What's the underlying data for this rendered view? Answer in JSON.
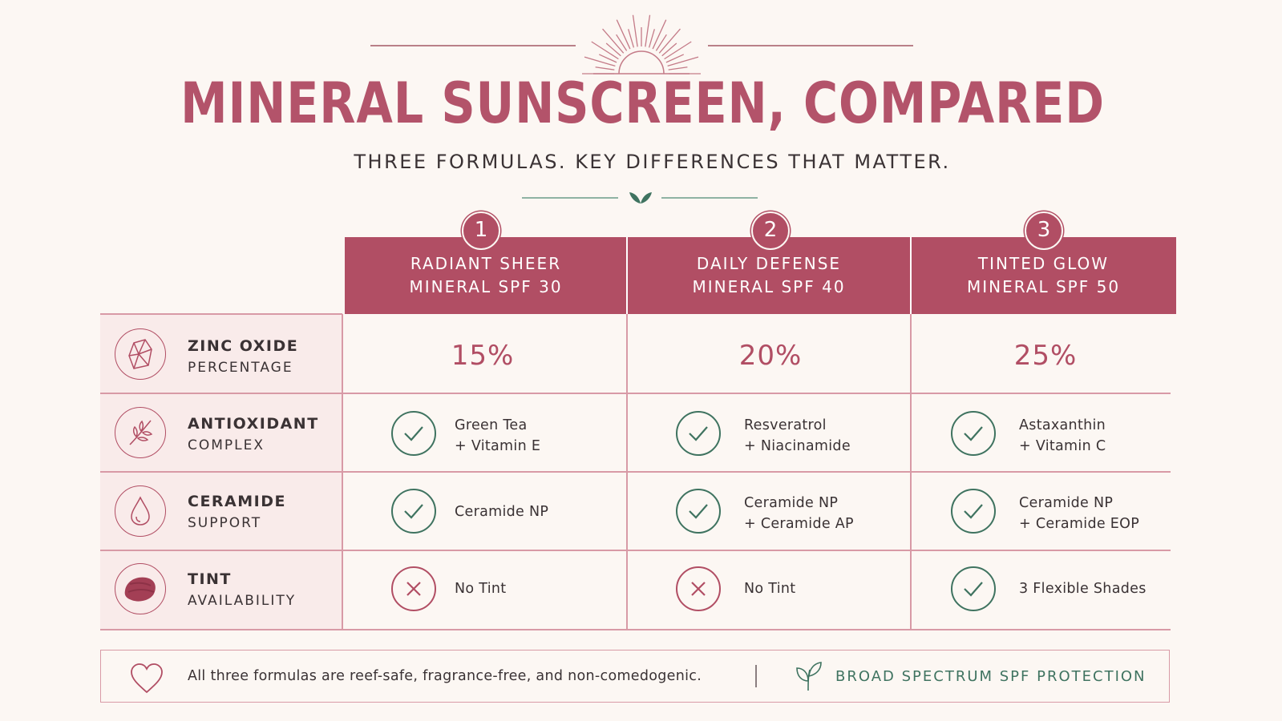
{
  "header": {
    "title": "MINERAL SUNSCREEN, COMPARED",
    "subtitle": "THREE FORMULAS. KEY DIFFERENCES THAT MATTER."
  },
  "colors": {
    "accent": "#b14e64",
    "green": "#3f7360",
    "background": "#fcf7f3",
    "label_bg": "#f9ebea"
  },
  "products": [
    {
      "number": "1",
      "name_line1": "RADIANT SHEER",
      "name_line2": "MINERAL SPF 30"
    },
    {
      "number": "2",
      "name_line1": "DAILY DEFENSE",
      "name_line2": "MINERAL SPF 40"
    },
    {
      "number": "3",
      "name_line1": "TINTED GLOW",
      "name_line2": "MINERAL SPF 50"
    }
  ],
  "rows": [
    {
      "label_main": "ZINC OXIDE",
      "label_sub": "PERCENTAGE",
      "icon": "crystal-icon",
      "cells": [
        {
          "value": "15%"
        },
        {
          "value": "20%"
        },
        {
          "value": "25%"
        }
      ]
    },
    {
      "label_main": "ANTIOXIDANT",
      "label_sub": "COMPLEX",
      "icon": "sprig-icon",
      "cells": [
        {
          "status": "check",
          "line1": "Green Tea",
          "line2": "+ Vitamin E"
        },
        {
          "status": "check",
          "line1": "Resveratrol",
          "line2": "+ Niacinamide"
        },
        {
          "status": "check",
          "line1": "Astaxanthin",
          "line2": "+ Vitamin C"
        }
      ]
    },
    {
      "label_main": "CERAMIDE",
      "label_sub": "SUPPORT",
      "icon": "droplet-icon",
      "cells": [
        {
          "status": "check",
          "line1": "Ceramide NP",
          "line2": ""
        },
        {
          "status": "check",
          "line1": "Ceramide NP",
          "line2": "+ Ceramide AP"
        },
        {
          "status": "check",
          "line1": "Ceramide NP",
          "line2": "+ Ceramide EOP"
        }
      ]
    },
    {
      "label_main": "TINT",
      "label_sub": "AVAILABILITY",
      "icon": "tint-swatch-icon",
      "cells": [
        {
          "status": "cross",
          "line1": "No Tint"
        },
        {
          "status": "cross",
          "line1": "No Tint"
        },
        {
          "status": "check",
          "line1": "3 Flexible Shades"
        }
      ]
    }
  ],
  "footer": {
    "note": "All three formulas are reef-safe, fragrance-free, and non-comedogenic.",
    "badge": "BROAD SPECTRUM SPF PROTECTION",
    "left_icon": "heart-icon",
    "right_icon": "leaf-icon"
  }
}
